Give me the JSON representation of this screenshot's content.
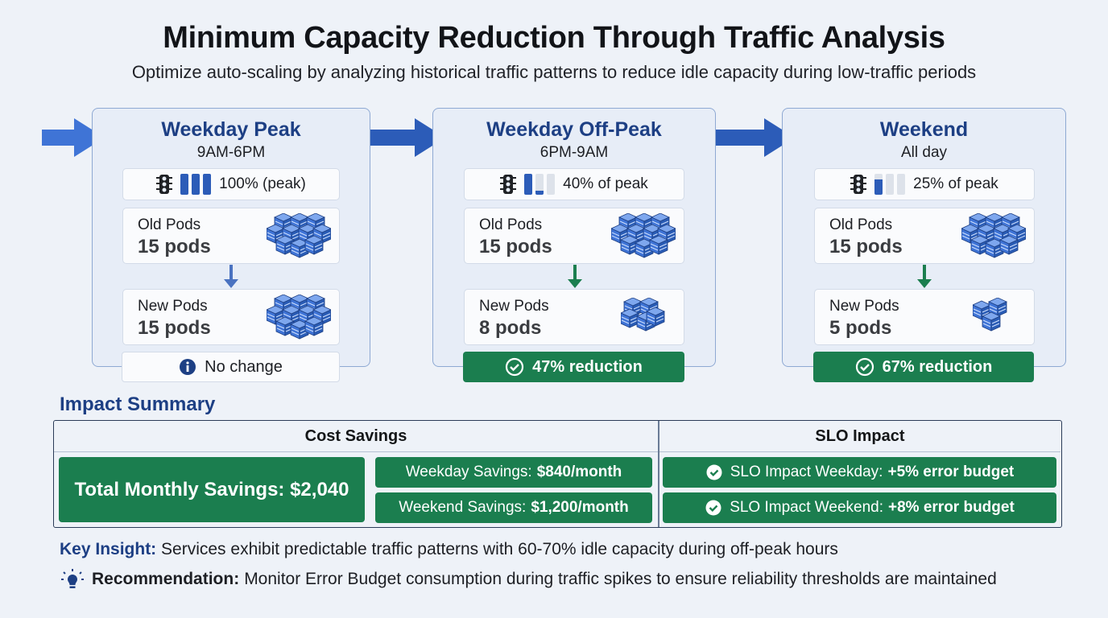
{
  "title": "Minimum Capacity Reduction Through Traffic Analysis",
  "subtitle": "Optimize auto-scaling by analyzing historical traffic patterns to reduce idle capacity during low-traffic periods",
  "colors": {
    "accent": "#1d3f84",
    "arrow": "#2c5cb8",
    "green": "#1b7e4f",
    "server": "#3f74d6"
  },
  "stages": [
    {
      "name": "Weekday Peak",
      "time": "9AM-6PM",
      "traffic_label": "100% (peak)",
      "traffic_fraction": 1.0,
      "old_label": "Old Pods",
      "old_count": "15 pods",
      "new_label": "New Pods",
      "new_count": "15 pods",
      "result": "No change",
      "result_icon": "info-icon"
    },
    {
      "name": "Weekday Off-Peak",
      "time": "6PM-9AM",
      "traffic_label": "40% of peak",
      "traffic_fraction": 0.4,
      "old_label": "Old Pods",
      "old_count": "15 pods",
      "new_label": "New Pods",
      "new_count": "8 pods",
      "result": "47% reduction",
      "result_icon": "check-circle-icon"
    },
    {
      "name": "Weekend",
      "time": "All day",
      "traffic_label": "25% of peak",
      "traffic_fraction": 0.25,
      "old_label": "Old Pods",
      "old_count": "15 pods",
      "new_label": "New Pods",
      "new_count": "5 pods",
      "result": "67% reduction",
      "result_icon": "check-circle-icon"
    }
  ],
  "impact": {
    "title": "Impact Summary",
    "cost_header": "Cost Savings",
    "slo_header": "SLO Impact",
    "total": "Total Monthly Savings: $2,040",
    "weekday_savings_label": "Weekday Savings:",
    "weekday_savings_value": "$840/month",
    "weekend_savings_label": "Weekend Savings:",
    "weekend_savings_value": "$1,200/month",
    "slo_weekday_label": "SLO Impact Weekday:",
    "slo_weekday_value": "+5% error budget",
    "slo_weekend_label": "SLO Impact Weekend:",
    "slo_weekend_value": "+8% error budget"
  },
  "insight": {
    "label": "Key Insight:",
    "text": "Services exhibit predictable traffic patterns with 60-70% idle capacity during off-peak hours"
  },
  "recommendation": {
    "label": "Recommendation:",
    "text": "Monitor Error Budget consumption during traffic spikes to ensure reliability thresholds are maintained"
  }
}
